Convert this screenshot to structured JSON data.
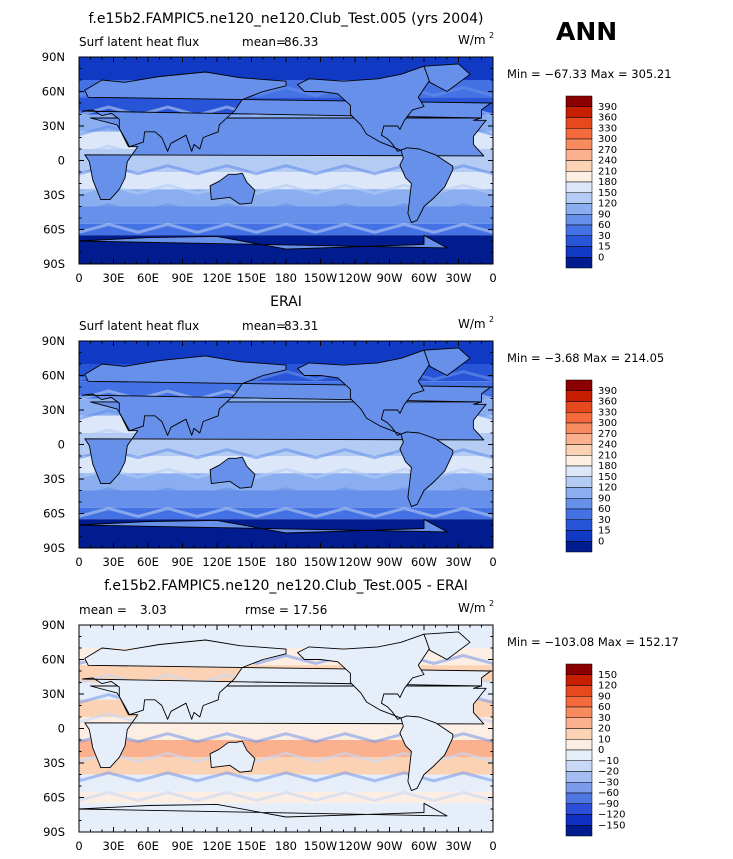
{
  "season": "ANN",
  "chart_data": [
    {
      "type": "heatmap",
      "title": "f.e15b2.FAMPIC5.ne120_ne120.Club_Test.005 (yrs 2004)",
      "left_label": "Surf latent heat flux",
      "mean_label": "mean=",
      "mean_value": "86.33",
      "units": "W/m",
      "units_sup": "2",
      "minmax": "Min = −67.33 Max = 305.21",
      "min": -67.33,
      "max": 305.21,
      "colorbar_levels": [
        "390",
        "360",
        "330",
        "300",
        "270",
        "240",
        "210",
        "180",
        "150",
        "120",
        "90",
        "60",
        "30",
        "15",
        "0"
      ],
      "colorbar_colors": [
        "#8b0000",
        "#c81e00",
        "#e8481e",
        "#f46a3c",
        "#f88c60",
        "#fbb08e",
        "#fcd2b4",
        "#fdf0e2",
        "#dce8fa",
        "#b4cbf4",
        "#8aaef0",
        "#6690ea",
        "#4472e4",
        "#2855d8",
        "#103ac4",
        "#001c8e"
      ],
      "xticks": [
        "0",
        "30E",
        "60E",
        "90E",
        "120E",
        "150E",
        "180",
        "150W",
        "120W",
        "90W",
        "60W",
        "30W",
        "0"
      ],
      "yticks": [
        "90N",
        "60N",
        "30N",
        "0",
        "30S",
        "60S",
        "90S"
      ],
      "grid": false
    },
    {
      "type": "heatmap",
      "title": "ERAI",
      "left_label": "Surf latent heat flux",
      "mean_label": "mean=",
      "mean_value": "83.31",
      "units": "W/m",
      "units_sup": "2",
      "minmax": "Min =  −3.68 Max = 214.05",
      "min": -3.68,
      "max": 214.05,
      "colorbar_levels": [
        "390",
        "360",
        "330",
        "300",
        "270",
        "240",
        "210",
        "180",
        "150",
        "120",
        "90",
        "60",
        "30",
        "15",
        "0"
      ],
      "colorbar_colors": [
        "#8b0000",
        "#c81e00",
        "#e8481e",
        "#f46a3c",
        "#f88c60",
        "#fbb08e",
        "#fcd2b4",
        "#fdf0e2",
        "#dce8fa",
        "#b4cbf4",
        "#8aaef0",
        "#6690ea",
        "#4472e4",
        "#2855d8",
        "#103ac4",
        "#001c8e"
      ],
      "xticks": [
        "0",
        "30E",
        "60E",
        "90E",
        "120E",
        "150E",
        "180",
        "150W",
        "120W",
        "90W",
        "60W",
        "30W",
        "0"
      ],
      "yticks": [
        "90N",
        "60N",
        "30N",
        "0",
        "30S",
        "60S",
        "90S"
      ],
      "grid": false
    },
    {
      "type": "heatmap",
      "title": "f.e15b2.FAMPIC5.ne120_ne120.Club_Test.005 - ERAI",
      "left_label": "mean =",
      "mean_label": "",
      "mean_value": "3.03",
      "rmse_label": "rmse =",
      "rmse_value": "17.56",
      "units": "W/m",
      "units_sup": "2",
      "minmax": "Min = −103.08 Max = 152.17",
      "min": -103.08,
      "max": 152.17,
      "colorbar_levels": [
        "150",
        "120",
        "90",
        "60",
        "30",
        "20",
        "10",
        "0",
        "−10",
        "−20",
        "−30",
        "−60",
        "−90",
        "−120",
        "−150"
      ],
      "colorbar_colors": [
        "#8b0000",
        "#c81e00",
        "#e8481e",
        "#f46a3c",
        "#f88c60",
        "#fbb08e",
        "#fcd2b4",
        "#fdeee4",
        "#e6eefa",
        "#c8d8f6",
        "#a4bcf0",
        "#7c9ceb",
        "#5076e2",
        "#2a4ed8",
        "#1030c4",
        "#001c8e"
      ],
      "xticks": [
        "0",
        "30E",
        "60E",
        "90E",
        "120E",
        "150E",
        "180",
        "150W",
        "120W",
        "90W",
        "60W",
        "30W",
        "0"
      ],
      "yticks": [
        "90N",
        "60N",
        "30N",
        "0",
        "30S",
        "60S",
        "90S"
      ],
      "grid": false
    }
  ]
}
